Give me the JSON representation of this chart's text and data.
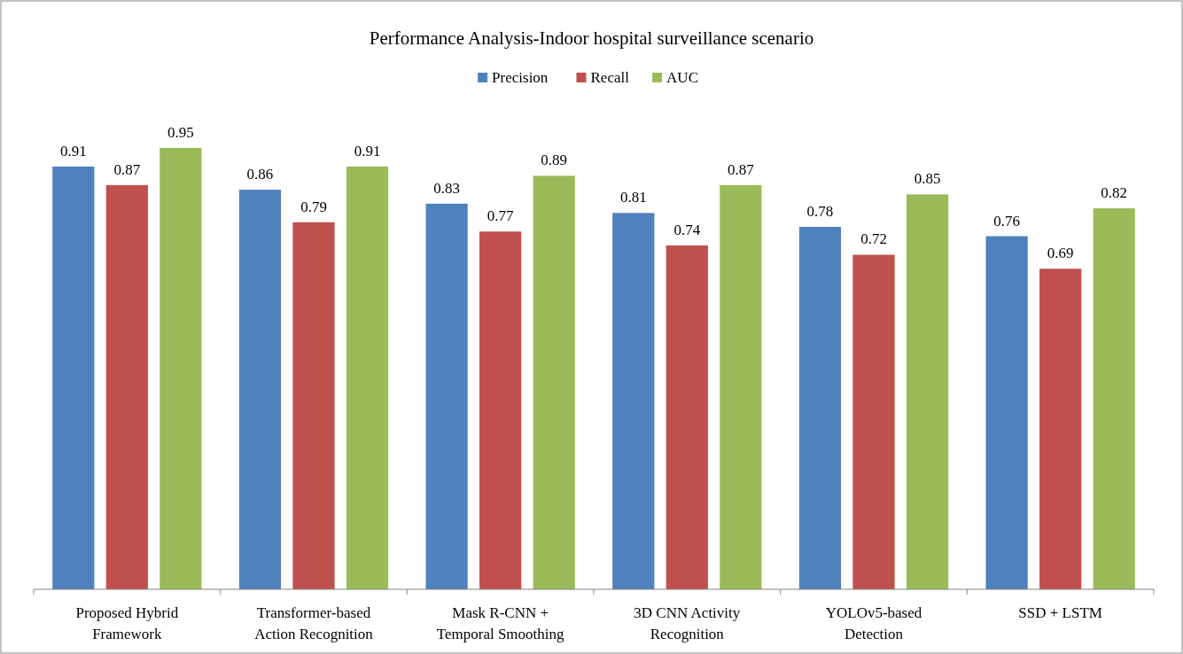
{
  "chart_data": {
    "type": "bar",
    "title": "Performance Analysis-Indoor hospital surveillance scenario",
    "categories": [
      "Proposed Hybrid Framework",
      "Transformer-based Action Recognition",
      "Mask R-CNN + Temporal Smoothing",
      "3D CNN Activity Recognition",
      "YOLOv5-based Detection",
      "SSD + LSTM"
    ],
    "series": [
      {
        "name": "Precision",
        "color": "#4f81bd",
        "values": [
          0.91,
          0.86,
          0.83,
          0.81,
          0.78,
          0.76
        ]
      },
      {
        "name": "Recall",
        "color": "#c0504d",
        "values": [
          0.87,
          0.79,
          0.77,
          0.74,
          0.72,
          0.69
        ]
      },
      {
        "name": "AUC",
        "color": "#9bbb59",
        "values": [
          0.95,
          0.91,
          0.89,
          0.87,
          0.85,
          0.82
        ]
      }
    ],
    "data_labels": true,
    "legend": "top",
    "grid": false
  }
}
